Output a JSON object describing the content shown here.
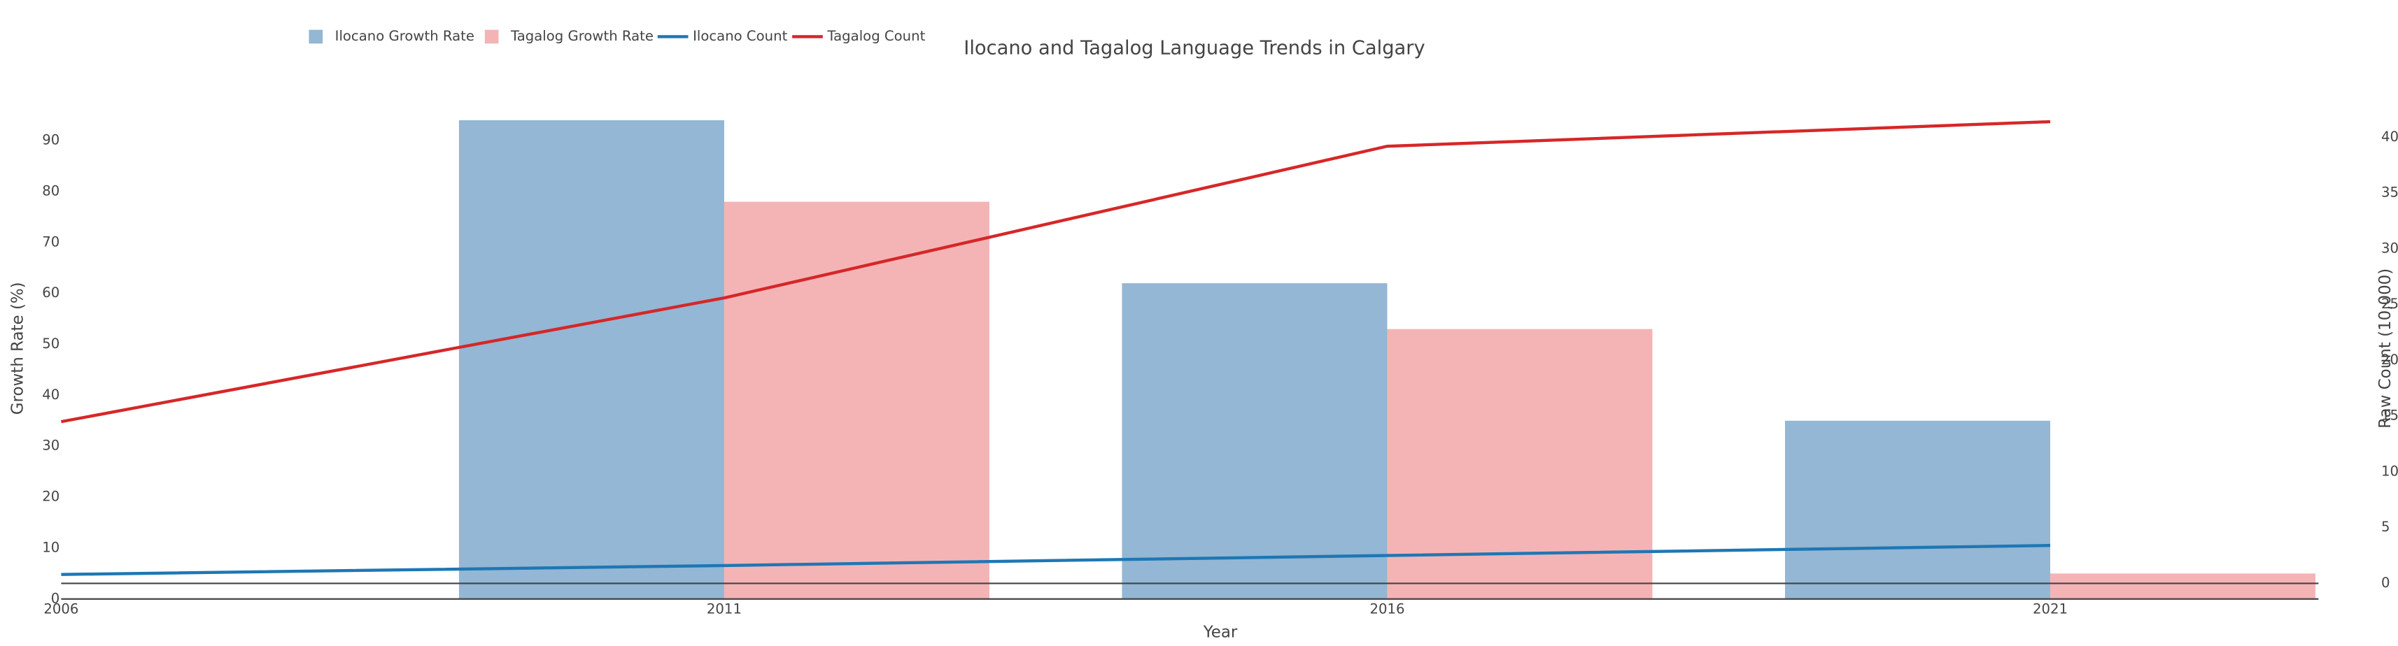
{
  "chart_data": {
    "type": "bar",
    "title": "Ilocano and Tagalog Language Trends in Calgary",
    "x": [
      2006,
      2011,
      2016,
      2021
    ],
    "x_label": "Year",
    "y_label": "Growth Rate (%)",
    "y2_label": "Raw Count (10,000)",
    "series": [
      {
        "name": "Ilocano Growth Rate",
        "type": "bar",
        "color": "#93b7d4",
        "values": [
          null,
          94,
          62,
          35
        ]
      },
      {
        "name": "Tagalog Growth Rate",
        "type": "bar",
        "color": "#f4b4b6",
        "values": [
          null,
          78,
          53,
          5
        ]
      },
      {
        "name": "Ilocano Count",
        "type": "line",
        "axis": "y2",
        "color": "#1f77b4",
        "values": [
          0.8,
          1.6,
          2.5,
          3.4
        ]
      },
      {
        "name": "Tagalog Count",
        "type": "line",
        "axis": "y2",
        "color": "#d62728",
        "values": [
          14.5,
          25.6,
          39.2,
          41.4
        ]
      }
    ],
    "xlim": [
      2006,
      2023
    ],
    "xticks": [
      2006,
      2011,
      2016,
      2021
    ],
    "ylim": [
      0,
      97
    ],
    "yticks": [
      0,
      10,
      20,
      30,
      40,
      50,
      60,
      70,
      80,
      90
    ],
    "y2lim": [
      -1.4,
      42.9
    ],
    "y2ticks": [
      0,
      5,
      10,
      15,
      20,
      25,
      30,
      35,
      40
    ],
    "legend": "top-left"
  }
}
